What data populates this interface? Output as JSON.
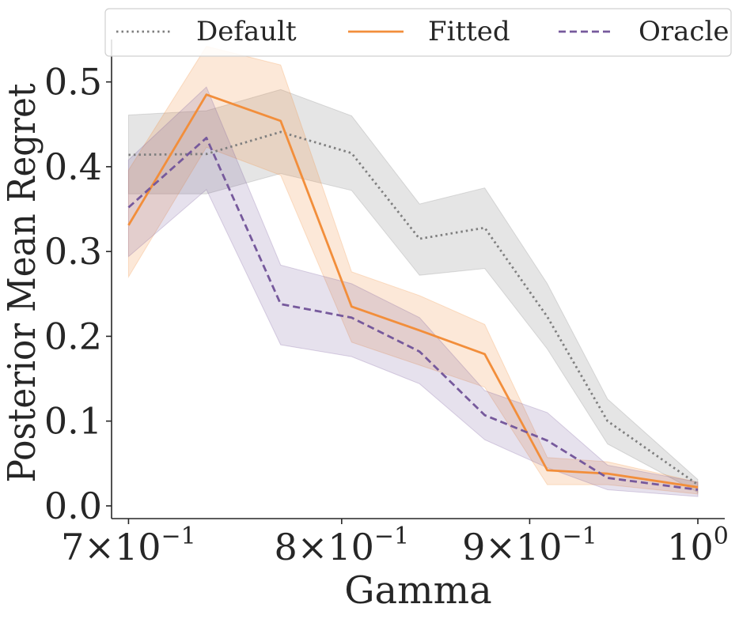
{
  "chart_data": {
    "type": "line",
    "title": "",
    "xlabel": "Gamma",
    "ylabel": "Posterior Mean Regret",
    "xscale": "log",
    "xlim": [
      0.6926,
      1.017
    ],
    "ylim": [
      -0.015,
      0.55
    ],
    "x": [
      0.7,
      0.735,
      0.77,
      0.805,
      0.84,
      0.875,
      0.91,
      0.945,
      1.0
    ],
    "x_ticks": [
      {
        "value": 0.7,
        "base": "7",
        "exp": "−1"
      },
      {
        "value": 0.8,
        "base": "8",
        "exp": "−1"
      },
      {
        "value": 0.9,
        "base": "9",
        "exp": "−1"
      },
      {
        "value": 1.0,
        "base": "",
        "exp": "0"
      }
    ],
    "y_ticks": [
      {
        "value": 0.0,
        "label": "0.0"
      },
      {
        "value": 0.1,
        "label": "0.1"
      },
      {
        "value": 0.2,
        "label": "0.2"
      },
      {
        "value": 0.3,
        "label": "0.3"
      },
      {
        "value": 0.4,
        "label": "0.4"
      },
      {
        "value": 0.5,
        "label": "0.5"
      }
    ],
    "times_symbol": "×",
    "tick_base_10": "10",
    "grid": false,
    "legend_position": "top",
    "series": [
      {
        "name": "Default",
        "color": "#7f7f7f",
        "line_style": "dotted",
        "values": [
          0.414,
          0.415,
          0.441,
          0.416,
          0.315,
          0.328,
          0.223,
          0.1,
          0.025
        ],
        "lower": [
          0.368,
          0.368,
          0.392,
          0.372,
          0.272,
          0.28,
          0.185,
          0.073,
          0.016
        ],
        "upper": [
          0.461,
          0.466,
          0.491,
          0.46,
          0.356,
          0.375,
          0.262,
          0.126,
          0.031
        ]
      },
      {
        "name": "Fitted",
        "color": "#f28e3b",
        "line_style": "solid",
        "values": [
          0.331,
          0.485,
          0.454,
          0.235,
          0.207,
          0.179,
          0.042,
          0.038,
          0.022
        ],
        "lower": [
          0.27,
          0.423,
          0.39,
          0.193,
          0.166,
          0.14,
          0.025,
          0.025,
          0.014
        ],
        "upper": [
          0.396,
          0.542,
          0.52,
          0.276,
          0.248,
          0.214,
          0.057,
          0.052,
          0.028
        ]
      },
      {
        "name": "Oracle",
        "color": "#76599c",
        "line_style": "dashed",
        "values": [
          0.352,
          0.434,
          0.238,
          0.222,
          0.182,
          0.107,
          0.077,
          0.033,
          0.019
        ],
        "lower": [
          0.294,
          0.373,
          0.19,
          0.176,
          0.144,
          0.078,
          0.045,
          0.019,
          0.011
        ],
        "upper": [
          0.408,
          0.494,
          0.284,
          0.262,
          0.222,
          0.136,
          0.11,
          0.048,
          0.028
        ]
      }
    ]
  }
}
